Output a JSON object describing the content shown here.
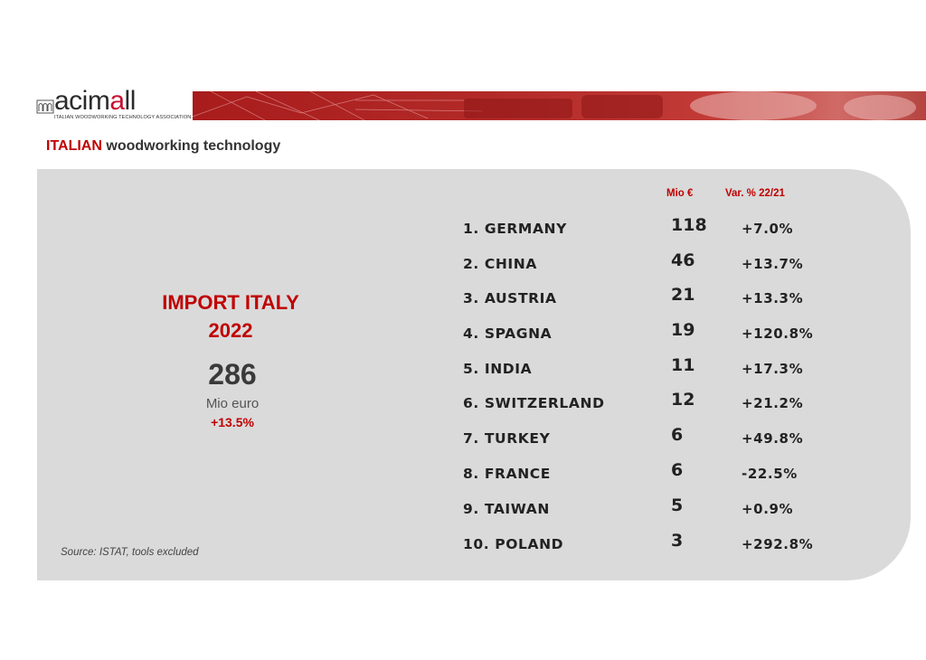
{
  "brand": {
    "logo_text_main": "acim",
    "logo_text_accent": "a",
    "logo_text_tail": "ll",
    "logo_tagline": "ITALIAN WOODWORKING TECHNOLOGY ASSOCIATION",
    "accent_color": "#c00000"
  },
  "subtitle": {
    "highlight": "ITALIAN",
    "rest": " woodworking technology"
  },
  "summary": {
    "title_line1": "IMPORT ITALY",
    "title_line2": "2022",
    "total": "286",
    "unit": "Mio euro",
    "change": "+13.5%",
    "source": "Source: ISTAT, tools excluded"
  },
  "table": {
    "header_value": "Mio €",
    "header_var": "Var. % 22/21",
    "rows": [
      {
        "country": "1. GERMANY",
        "value": "118",
        "var": "+7.0%"
      },
      {
        "country": "2. CHINA",
        "value": "46",
        "var": "+13.7%"
      },
      {
        "country": "3. AUSTRIA",
        "value": "21",
        "var": "+13.3%"
      },
      {
        "country": "4. SPAGNA",
        "value": "19",
        "var": "+120.8%"
      },
      {
        "country": "5. INDIA",
        "value": "11",
        "var": "+17.3%"
      },
      {
        "country": "6. SWITZERLAND",
        "value": "12",
        "var": "+21.2%"
      },
      {
        "country": "7. TURKEY",
        "value": "6",
        "var": "+49.8%"
      },
      {
        "country": "8. FRANCE",
        "value": "6",
        "var": "-22.5%"
      },
      {
        "country": "9. TAIWAN",
        "value": "5",
        "var": "+0.9%"
      },
      {
        "country": "10. POLAND",
        "value": "3",
        "var": "+292.8%"
      }
    ]
  }
}
